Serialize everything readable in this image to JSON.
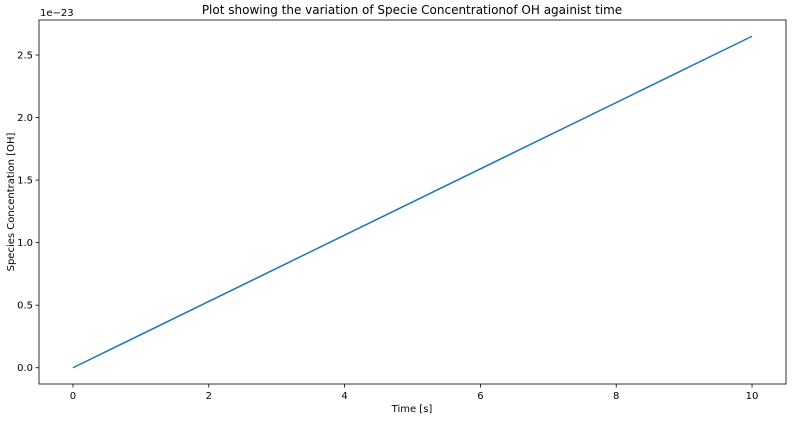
{
  "chart_data": {
    "type": "line",
    "title": "Plot showing the  variation of Specie Concentrationof OH againist time",
    "xlabel": "Time [s]",
    "ylabel": "Species Concentration [OH]",
    "y_offset_label": "1e−23",
    "xlim": [
      -0.5,
      10.5
    ],
    "ylim": [
      -0.13,
      2.78
    ],
    "x_ticks": [
      0,
      2,
      4,
      6,
      8,
      10
    ],
    "x_tick_labels": [
      "0",
      "2",
      "4",
      "6",
      "8",
      "10"
    ],
    "y_ticks": [
      0.0,
      0.5,
      1.0,
      1.5,
      2.0,
      2.5
    ],
    "y_tick_labels": [
      "0.0",
      "0.5",
      "1.0",
      "1.5",
      "2.0",
      "2.5"
    ],
    "grid": false,
    "series": [
      {
        "color": "#1f77b4",
        "x": [
          0,
          10
        ],
        "y": [
          0.0,
          2.65
        ]
      }
    ]
  }
}
